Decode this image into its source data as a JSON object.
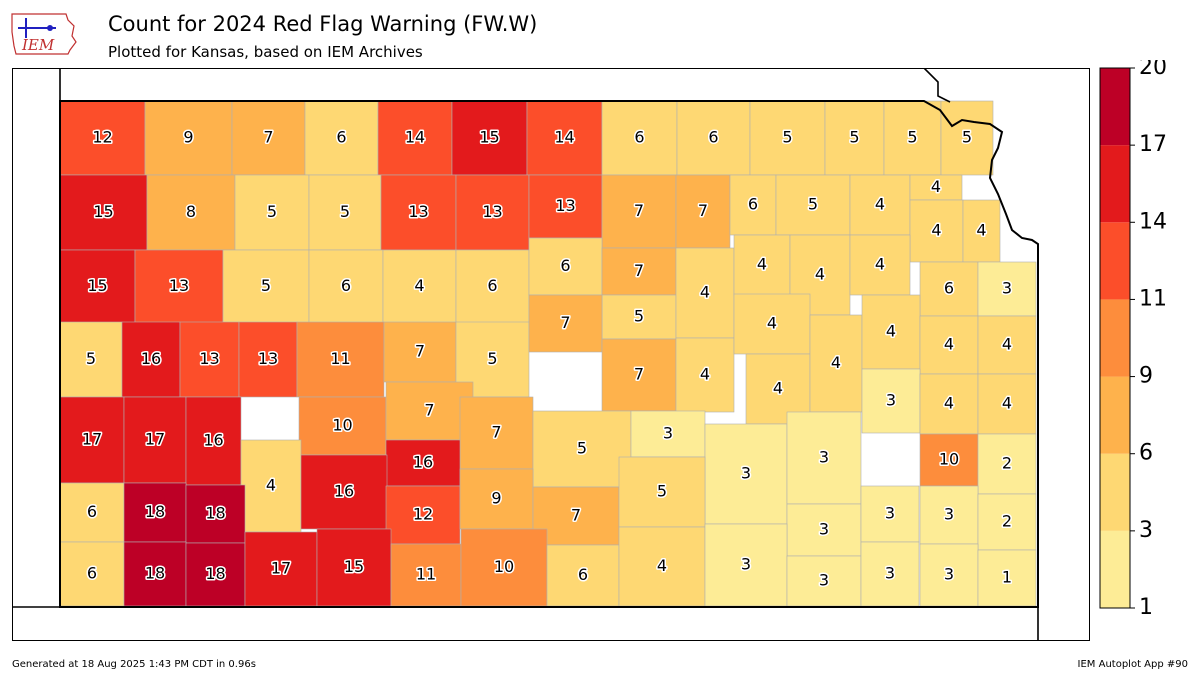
{
  "header": {
    "title": "Count for 2024 Red Flag Warning (FW.W)",
    "subtitle": "Plotted for Kansas, based on IEM Archives",
    "logo_text": "IEM"
  },
  "footer": {
    "generated": "Generated at 18 Aug 2025 1:43 PM CDT in 0.96s",
    "app": "IEM Autoplot App #90"
  },
  "colorbar": {
    "ticks": [
      "1",
      "3",
      "6",
      "9",
      "11",
      "14",
      "17",
      "20"
    ],
    "bins": [
      {
        "min": 1,
        "max": 3,
        "color": "#fdec96"
      },
      {
        "min": 3,
        "max": 6,
        "color": "#fed873"
      },
      {
        "min": 6,
        "max": 9,
        "color": "#feb24c"
      },
      {
        "min": 9,
        "max": 11,
        "color": "#fd8d3c"
      },
      {
        "min": 11,
        "max": 14,
        "color": "#fc4e2a"
      },
      {
        "min": 14,
        "max": 17,
        "color": "#e31a1c"
      },
      {
        "min": 17,
        "max": 20,
        "color": "#bd0026"
      }
    ]
  },
  "counties": [
    {
      "i": 0,
      "v": 12
    },
    {
      "i": 1,
      "v": 9
    },
    {
      "i": 2,
      "v": 7
    },
    {
      "i": 3,
      "v": 6
    },
    {
      "i": 4,
      "v": 14
    },
    {
      "i": 5,
      "v": 15
    },
    {
      "i": 6,
      "v": 14
    },
    {
      "i": 7,
      "v": 6
    },
    {
      "i": 8,
      "v": 6
    },
    {
      "i": 9,
      "v": 5
    },
    {
      "i": 10,
      "v": 5
    },
    {
      "i": 11,
      "v": 5
    },
    {
      "i": 12,
      "v": 5
    },
    {
      "i": 13,
      "v": 15
    },
    {
      "i": 14,
      "v": 8
    },
    {
      "i": 15,
      "v": 5
    },
    {
      "i": 16,
      "v": 5
    },
    {
      "i": 17,
      "v": 13
    },
    {
      "i": 18,
      "v": 13
    },
    {
      "i": 19,
      "v": 13
    },
    {
      "i": 20,
      "v": 7
    },
    {
      "i": 21,
      "v": 7
    },
    {
      "i": 22,
      "v": 6
    },
    {
      "i": 23,
      "v": 5
    },
    {
      "i": 24,
      "v": 4
    },
    {
      "i": 25,
      "v": 4
    },
    {
      "i": 26,
      "v": 4
    },
    {
      "i": 27,
      "v": 4
    },
    {
      "i": 28,
      "v": 15
    },
    {
      "i": 29,
      "v": 13
    },
    {
      "i": 30,
      "v": 5
    },
    {
      "i": 31,
      "v": 6
    },
    {
      "i": 32,
      "v": 4
    },
    {
      "i": 33,
      "v": 6
    },
    {
      "i": 34,
      "v": 6
    },
    {
      "i": 35,
      "v": 7
    },
    {
      "i": 36,
      "v": 5
    },
    {
      "i": 37,
      "v": 4
    },
    {
      "i": 38,
      "v": 4
    },
    {
      "i": 39,
      "v": 4
    },
    {
      "i": 40,
      "v": 4
    },
    {
      "i": 41,
      "v": 6
    },
    {
      "i": 42,
      "v": 3
    },
    {
      "i": 43,
      "v": 5
    },
    {
      "i": 44,
      "v": 16
    },
    {
      "i": 45,
      "v": 13
    },
    {
      "i": 46,
      "v": 13
    },
    {
      "i": 47,
      "v": 11
    },
    {
      "i": 48,
      "v": 7
    },
    {
      "i": 49,
      "v": 5
    },
    {
      "i": 50,
      "v": 7
    },
    {
      "i": 51,
      "v": 7
    },
    {
      "i": 52,
      "v": 4
    },
    {
      "i": 53,
      "v": 4
    },
    {
      "i": 54,
      "v": 4
    },
    {
      "i": 55,
      "v": 4
    },
    {
      "i": 56,
      "v": 4
    },
    {
      "i": 57,
      "v": 4
    },
    {
      "i": 58,
      "v": 4
    },
    {
      "i": 59,
      "v": 17
    },
    {
      "i": 60,
      "v": 17
    },
    {
      "i": 61,
      "v": 16
    },
    {
      "i": 62,
      "v": 10
    },
    {
      "i": 63,
      "v": 7
    },
    {
      "i": 64,
      "v": 7
    },
    {
      "i": 65,
      "v": 5
    },
    {
      "i": 66,
      "v": 3
    },
    {
      "i": 67,
      "v": 3
    },
    {
      "i": 68,
      "v": 3
    },
    {
      "i": 69,
      "v": 3
    },
    {
      "i": 70,
      "v": 4
    },
    {
      "i": 71,
      "v": 4
    },
    {
      "i": 72,
      "v": 4
    },
    {
      "i": 73,
      "v": 16
    },
    {
      "i": 74,
      "v": 10
    },
    {
      "i": 75,
      "v": 2
    },
    {
      "i": 76,
      "v": 6
    },
    {
      "i": 77,
      "v": 18
    },
    {
      "i": 78,
      "v": 18
    },
    {
      "i": 79,
      "v": 16
    },
    {
      "i": 80,
      "v": 12
    },
    {
      "i": 81,
      "v": 9
    },
    {
      "i": 82,
      "v": 7
    },
    {
      "i": 83,
      "v": 5
    },
    {
      "i": 84,
      "v": 3
    },
    {
      "i": 85,
      "v": 3
    },
    {
      "i": 86,
      "v": 3
    },
    {
      "i": 87,
      "v": 2
    },
    {
      "i": 88,
      "v": 6
    },
    {
      "i": 89,
      "v": 18
    },
    {
      "i": 90,
      "v": 18
    },
    {
      "i": 91,
      "v": 17
    },
    {
      "i": 92,
      "v": 15
    },
    {
      "i": 93,
      "v": 11
    },
    {
      "i": 94,
      "v": 10
    },
    {
      "i": 95,
      "v": 6
    },
    {
      "i": 96,
      "v": 4
    },
    {
      "i": 97,
      "v": 3
    },
    {
      "i": 98,
      "v": 3
    },
    {
      "i": 99,
      "v": 3
    },
    {
      "i": 100,
      "v": 3
    },
    {
      "i": 101,
      "v": 1
    },
    {
      "i": 102,
      "v": 5
    }
  ]
}
